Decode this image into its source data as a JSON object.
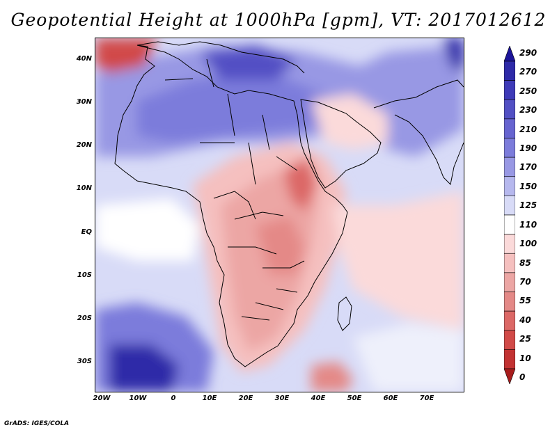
{
  "title": "Geopotential Height at 1000hPa [gpm], VT: 2017012612",
  "credit": "GrADS: IGES/COLA",
  "map": {
    "lat_labels": [
      "40N",
      "30N",
      "20N",
      "10N",
      "EQ",
      "10S",
      "20S",
      "30S"
    ],
    "lon_labels": [
      "20W",
      "10W",
      "0",
      "10E",
      "20E",
      "30E",
      "40E",
      "50E",
      "60E",
      "70E"
    ]
  },
  "colorbar": {
    "levels": [
      "290",
      "270",
      "250",
      "230",
      "210",
      "190",
      "170",
      "150",
      "125",
      "110",
      "100",
      "85",
      "70",
      "55",
      "40",
      "25",
      "10",
      "0"
    ],
    "colors": [
      "#1c1499",
      "#2e2aa8",
      "#3e3ab8",
      "#5250c4",
      "#6664d0",
      "#7c7cdb",
      "#9898e4",
      "#b6b8ee",
      "#d8dbf7",
      "#ffffff",
      "#fbdada",
      "#f5c0bf",
      "#eca6a4",
      "#e48987",
      "#dc6866",
      "#d14a48",
      "#c23232",
      "#a81c1c"
    ]
  },
  "field_colors": {
    "ocean": "#d8dbf7",
    "ocean_light": "#eef0fb",
    "blue_mid": "#9898e4",
    "blue_strong": "#7c7cdb",
    "blue_deep": "#5250c4",
    "blue_max": "#2e2aa8",
    "white": "#ffffff",
    "pink_light": "#fbdada",
    "pink": "#f5c0bf",
    "red_light": "#eca6a4",
    "red": "#e48987",
    "red_strong": "#dc6866",
    "red_deep": "#d14a48"
  }
}
